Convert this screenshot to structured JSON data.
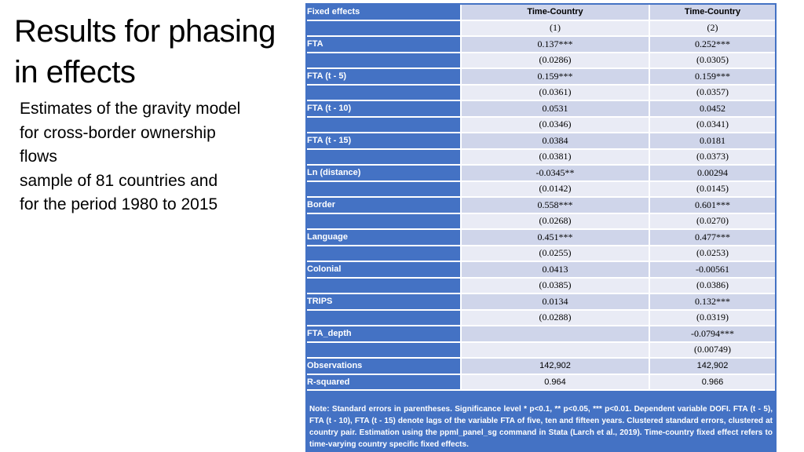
{
  "title": {
    "line1": "Results for phasing",
    "line2": "in effects"
  },
  "subtitle": {
    "lines": [
      "Estimates of the gravity model",
      "for cross-border ownership",
      "flows",
      "sample of 81 countries and",
      "for the period 1980 to 2015"
    ]
  },
  "table": {
    "header": [
      "Fixed effects",
      "Time-Country",
      "Time-Country"
    ],
    "model_numbers": [
      "(1)",
      "(2)"
    ],
    "variables": [
      {
        "name": "FTA",
        "col1": "0.137***",
        "col2": "0.252***",
        "se1": "(0.0286)",
        "se2": "(0.0305)"
      },
      {
        "name": "FTA (t - 5)",
        "col1": "0.159***",
        "col2": "0.159***",
        "se1": "(0.0361)",
        "se2": "(0.0357)"
      },
      {
        "name": "FTA (t - 10)",
        "col1": "0.0531",
        "col2": "0.0452",
        "se1": "(0.0346)",
        "se2": "(0.0341)"
      },
      {
        "name": "FTA (t - 15)",
        "col1": "0.0384",
        "col2": "0.0181",
        "se1": "(0.0381)",
        "se2": "(0.0373)"
      },
      {
        "name": "Ln (distance)",
        "col1": "-0.0345**",
        "col2": "0.00294",
        "se1": "(0.0142)",
        "se2": "(0.0145)"
      },
      {
        "name": "Border",
        "col1": "0.558***",
        "col2": "0.601***",
        "se1": "(0.0268)",
        "se2": "(0.0270)"
      },
      {
        "name": "Language",
        "col1": "0.451***",
        "col2": "0.477***",
        "se1": "(0.0255)",
        "se2": "(0.0253)"
      },
      {
        "name": "Colonial",
        "col1": "0.0413",
        "col2": "-0.00561",
        "se1": "(0.0385)",
        "se2": "(0.0386)"
      },
      {
        "name": "TRIPS",
        "col1": "0.0134",
        "col2": "0.132***",
        "se1": "(0.0288)",
        "se2": "(0.0319)"
      },
      {
        "name": "FTA_depth",
        "col1": "",
        "col2": "-0.0794***",
        "se1": "",
        "se2": "(0.00749)"
      }
    ],
    "observations": {
      "label": "Observations",
      "col1": "142,902",
      "col2": "142,902"
    },
    "r_squared": {
      "label": "R-squared",
      "col1": "0.964",
      "col2": "0.966"
    }
  },
  "note": "Note: Standard errors in parentheses. Significance level * p<0.1, ** p<0.05, *** p<0.01. Dependent variable DOFI.  FTA (t - 5), FTA (t - 10), FTA (t - 15) denote lags of the variable FTA of five, ten and fifteen years. Clustered standard errors, clustered at country pair. Estimation using the ppml_panel_sg command in Stata (Larch et al., 2019). Time-country fixed effect refers to time-varying country specific fixed effects."
}
